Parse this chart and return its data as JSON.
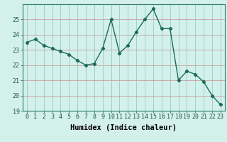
{
  "xlabel": "Humidex (Indice chaleur)",
  "x": [
    0,
    1,
    2,
    3,
    4,
    5,
    6,
    7,
    8,
    9,
    10,
    11,
    12,
    13,
    14,
    15,
    16,
    17,
    18,
    19,
    20,
    21,
    22,
    23
  ],
  "y": [
    23.5,
    23.7,
    23.3,
    23.1,
    22.9,
    22.7,
    22.3,
    22.0,
    22.1,
    23.1,
    25.0,
    22.8,
    23.3,
    24.2,
    25.0,
    25.7,
    24.4,
    24.4,
    21.0,
    21.6,
    21.4,
    20.9,
    20.0,
    19.4
  ],
  "line_color": "#1a6b5a",
  "marker": "D",
  "marker_size": 2.2,
  "bg_color": "#d4f0eb",
  "grid_color_h": "#c8a0a0",
  "grid_color_v": "#8ecece",
  "ylim": [
    19,
    26
  ],
  "yticks": [
    19,
    20,
    21,
    22,
    23,
    24,
    25
  ],
  "xticks": [
    0,
    1,
    2,
    3,
    4,
    5,
    6,
    7,
    8,
    9,
    10,
    11,
    12,
    13,
    14,
    15,
    16,
    17,
    18,
    19,
    20,
    21,
    22,
    23
  ],
  "tick_fontsize": 6.0,
  "xlabel_fontsize": 7.5,
  "linewidth": 1.0
}
